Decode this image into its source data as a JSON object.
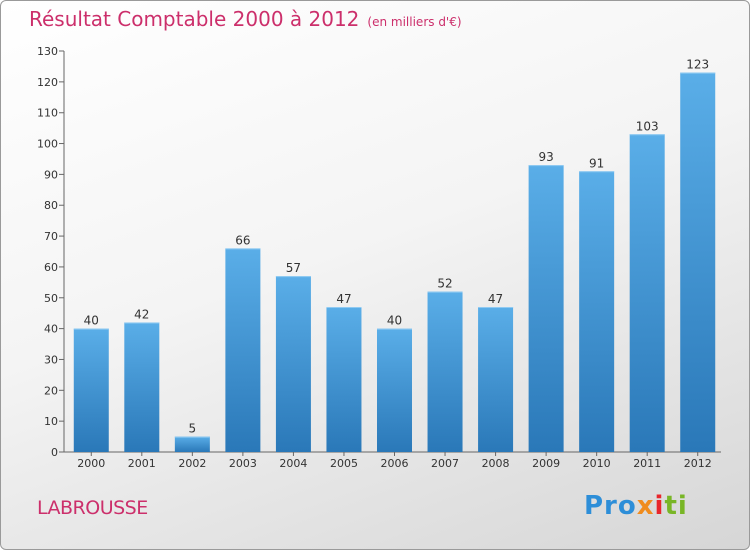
{
  "header": {
    "title": "Résultat Comptable 2000 à 2012",
    "unit": "(en milliers d'€)"
  },
  "footer": {
    "commune": "LABROUSSE",
    "logo": [
      "Pro",
      "x",
      "i",
      "ti"
    ]
  },
  "colors": {
    "title": "#cc2f6b",
    "bar_top": "#5aaee8",
    "bar_bottom": "#2a78b8",
    "axis": "#555555"
  },
  "chart_data": {
    "type": "bar",
    "title": "Résultat Comptable 2000 à 2012",
    "ylabel": "en milliers d'€",
    "xlabel": "",
    "categories": [
      "2000",
      "2001",
      "2002",
      "2003",
      "2004",
      "2005",
      "2006",
      "2007",
      "2008",
      "2009",
      "2010",
      "2011",
      "2012"
    ],
    "values": [
      40,
      42,
      5,
      66,
      57,
      47,
      40,
      52,
      47,
      93,
      91,
      103,
      123
    ],
    "ylim": [
      0,
      130
    ],
    "yticks": [
      0,
      10,
      20,
      30,
      40,
      50,
      60,
      70,
      80,
      90,
      100,
      110,
      120,
      130
    ],
    "grid": false,
    "legend": "none"
  }
}
